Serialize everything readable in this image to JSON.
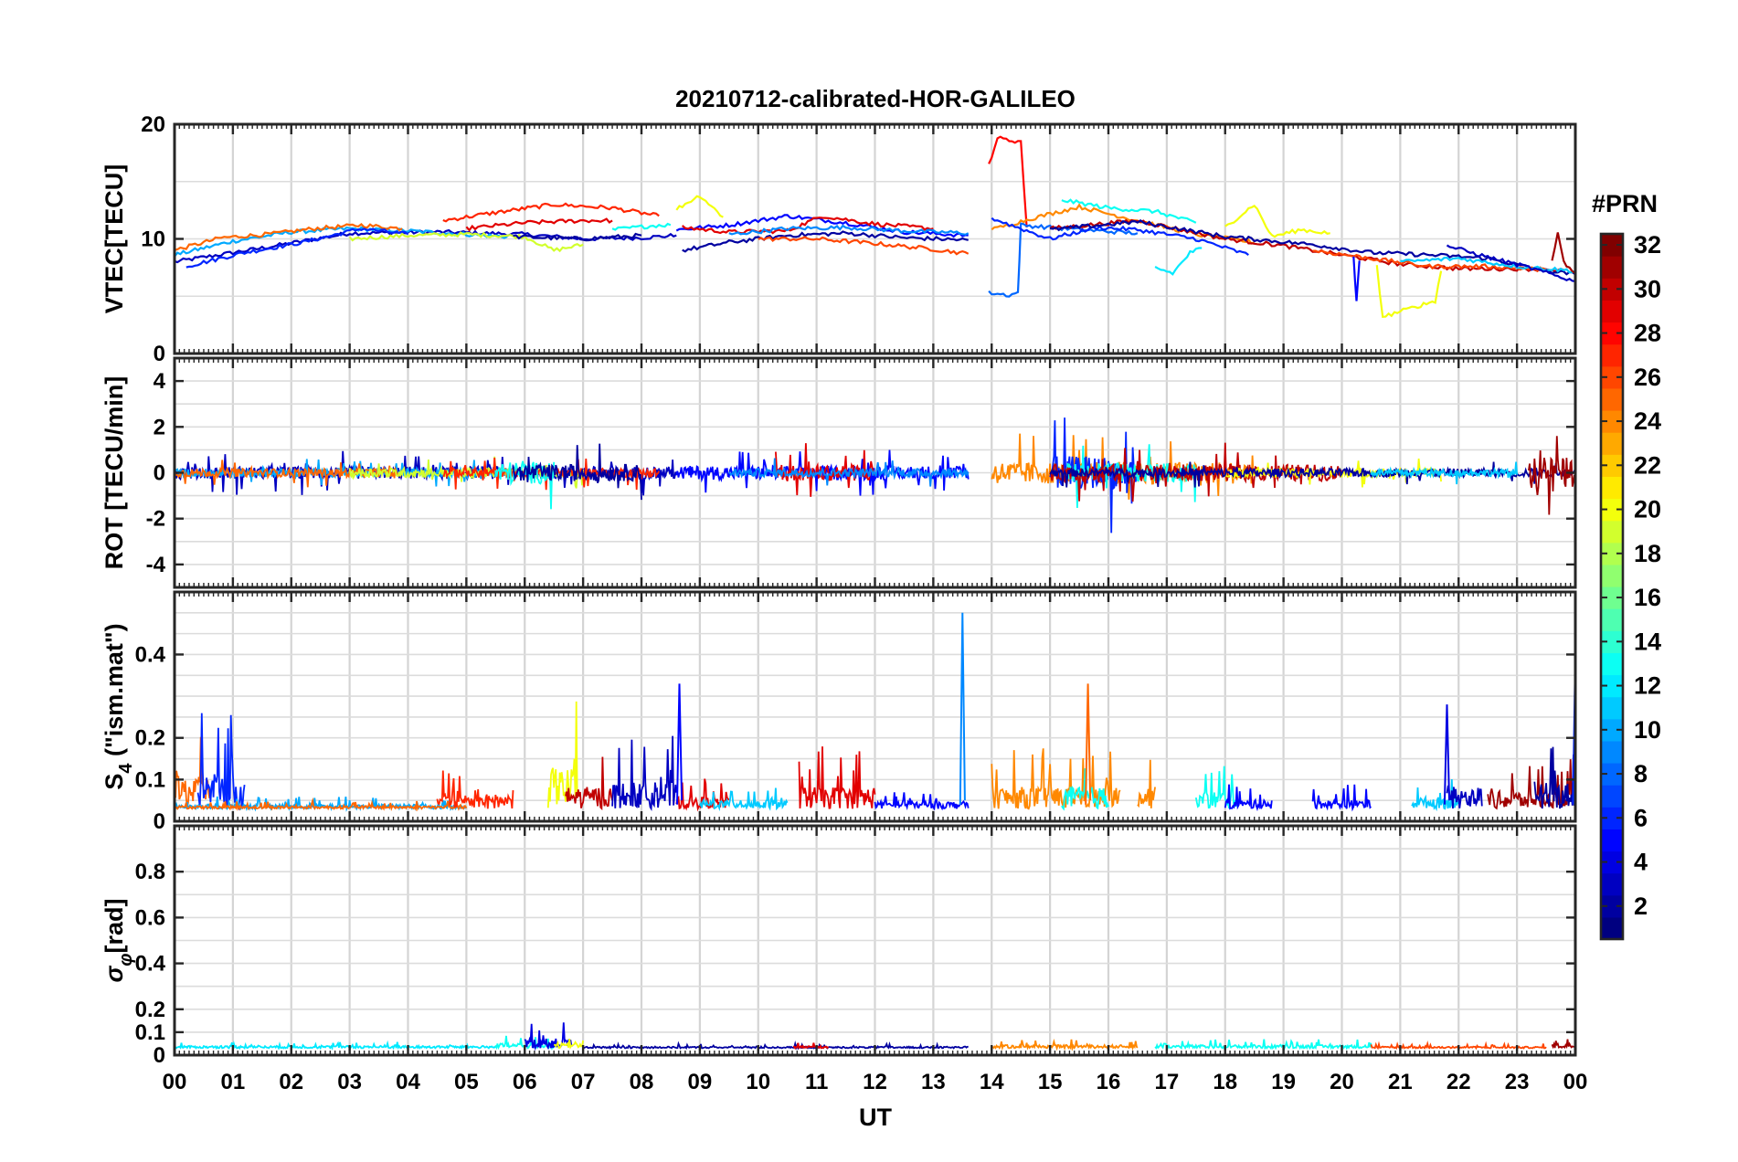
{
  "chart_data": {
    "type": "line",
    "title": "20210712-calibrated-HOR-GALILEO",
    "xlabel": "UT",
    "x_tick_labels": [
      "00",
      "01",
      "02",
      "03",
      "04",
      "05",
      "06",
      "07",
      "08",
      "09",
      "10",
      "11",
      "12",
      "13",
      "14",
      "15",
      "16",
      "17",
      "18",
      "19",
      "20",
      "21",
      "22",
      "23",
      "00"
    ],
    "xlim": [
      0,
      24
    ],
    "grid": true,
    "colormap": "jet",
    "colorbar": {
      "title": "#PRN",
      "range": [
        1,
        32
      ],
      "tick_labels": [
        "2",
        "4",
        "6",
        "8",
        "10",
        "12",
        "14",
        "16",
        "18",
        "20",
        "22",
        "24",
        "26",
        "28",
        "30",
        "32"
      ],
      "tick_values": [
        2,
        4,
        6,
        8,
        10,
        12,
        14,
        16,
        18,
        20,
        22,
        24,
        26,
        28,
        30,
        32
      ]
    },
    "panels": [
      {
        "name": "vtec",
        "ylabel": "VTEC[TECU]",
        "ylim": [
          0,
          20
        ],
        "y_ticks": [
          0,
          10,
          20
        ],
        "y_tick_labels": [
          "0",
          "10",
          "20"
        ],
        "series": [
          {
            "prn": 3,
            "x": [
              0.0,
              1.5,
              3.0,
              4.5,
              6.0,
              7.0,
              8.0,
              8.6
            ],
            "y": [
              8.0,
              9.2,
              10.5,
              10.6,
              10.4,
              10.0,
              10.1,
              10.3
            ]
          },
          {
            "prn": 10,
            "x": [
              0.0,
              1.0,
              2.0,
              3.0,
              4.0,
              5.0,
              5.7
            ],
            "y": [
              8.6,
              9.8,
              10.6,
              10.9,
              10.7,
              10.4,
              10.2
            ]
          },
          {
            "prn": 25,
            "x": [
              0.0,
              0.8,
              1.6,
              2.4,
              3.2,
              3.9
            ],
            "y": [
              9.0,
              10.1,
              10.4,
              10.9,
              11.2,
              10.9
            ]
          },
          {
            "prn": 6,
            "x": [
              0.2,
              1.2,
              2.2,
              3.2,
              4.0
            ],
            "y": [
              7.6,
              8.8,
              9.7,
              10.9,
              10.4
            ]
          },
          {
            "prn": 19,
            "x": [
              3.0,
              4.0,
              5.0,
              6.0,
              6.5,
              7.0
            ],
            "y": [
              10.0,
              10.3,
              10.4,
              10.2,
              9.0,
              9.5
            ]
          },
          {
            "prn": 27,
            "x": [
              4.6,
              5.5,
              6.5,
              7.5,
              8.3
            ],
            "y": [
              11.6,
              12.3,
              13.0,
              12.7,
              12.0
            ]
          },
          {
            "prn": 29,
            "x": [
              5.0,
              6.0,
              7.0,
              7.5
            ],
            "y": [
              10.9,
              11.4,
              11.6,
              11.6
            ]
          },
          {
            "prn": 2,
            "x": [
              5.8,
              7.0,
              8.0
            ],
            "y": [
              10.2,
              10.0,
              10.3
            ]
          },
          {
            "prn": 13,
            "x": [
              7.5,
              8.3,
              8.5
            ],
            "y": [
              10.8,
              11.2,
              11.2
            ]
          },
          {
            "prn": 20,
            "x": [
              8.6,
              9.0,
              9.4
            ],
            "y": [
              12.6,
              13.8,
              11.9
            ]
          },
          {
            "prn": 5,
            "x": [
              8.6,
              9.5,
              10.5,
              11.5,
              12.5,
              13.6
            ],
            "y": [
              10.8,
              11.2,
              12.0,
              11.4,
              10.6,
              10.3
            ]
          },
          {
            "prn": 29,
            "x": [
              8.7,
              9.5,
              10.5,
              11.1,
              12.0,
              13.0
            ],
            "y": [
              11.0,
              10.6,
              10.7,
              12.0,
              11.3,
              10.9
            ]
          },
          {
            "prn": 2,
            "x": [
              8.7,
              9.5,
              10.5,
              11.5,
              12.5,
              13.6
            ],
            "y": [
              9.0,
              9.7,
              10.3,
              10.5,
              10.1,
              9.9
            ]
          },
          {
            "prn": 9,
            "x": [
              9.5,
              10.5,
              11.5,
              12.5,
              13.6
            ],
            "y": [
              10.4,
              10.9,
              11.0,
              10.7,
              10.5
            ]
          },
          {
            "prn": 26,
            "x": [
              10.0,
              11.0,
              12.0,
              13.0,
              13.6
            ],
            "y": [
              10.0,
              10.0,
              9.6,
              9.1,
              8.7
            ]
          },
          {
            "prn": 28,
            "x": [
              13.95,
              14.1,
              14.3,
              14.5,
              14.6
            ],
            "y": [
              16.5,
              18.8,
              18.6,
              18.5,
              11.0
            ]
          },
          {
            "prn": 8,
            "x": [
              13.95,
              14.3,
              14.45,
              14.5,
              15.5,
              16.5
            ],
            "y": [
              5.3,
              5.1,
              5.3,
              11.2,
              10.8,
              10.5
            ]
          },
          {
            "prn": 24,
            "x": [
              14.0,
              14.7,
              15.5,
              16.5,
              17.5,
              18.5
            ],
            "y": [
              10.8,
              11.8,
              12.8,
              11.6,
              10.4,
              9.7
            ]
          },
          {
            "prn": 6,
            "x": [
              14.0,
              15.0,
              15.8,
              16.5,
              17.5,
              18.4
            ],
            "y": [
              11.8,
              10.0,
              11.0,
              10.8,
              10.0,
              8.6
            ]
          },
          {
            "prn": 13,
            "x": [
              15.2,
              16.0,
              16.8,
              17.5
            ],
            "y": [
              13.4,
              12.7,
              12.4,
              11.4
            ]
          },
          {
            "prn": 12,
            "x": [
              16.8,
              17.1,
              17.4,
              17.6
            ],
            "y": [
              7.5,
              7.0,
              8.8,
              9.2
            ]
          },
          {
            "prn": 20,
            "x": [
              18.0,
              18.5,
              18.8,
              19.3,
              19.8
            ],
            "y": [
              11.0,
              13.0,
              10.2,
              10.8,
              10.5
            ]
          },
          {
            "prn": 30,
            "x": [
              15.0,
              16.5,
              18.0,
              19.0,
              20.0,
              21.0,
              22.0,
              23.0,
              23.8
            ],
            "y": [
              10.9,
              11.6,
              10.0,
              9.4,
              8.6,
              7.8,
              7.4,
              7.4,
              7.3
            ]
          },
          {
            "prn": 2,
            "x": [
              15.0,
              16.5,
              18.0,
              19.5,
              20.5,
              21.5,
              22.5,
              23.4,
              24.0
            ],
            "y": [
              10.8,
              11.5,
              10.2,
              9.5,
              8.8,
              8.6,
              8.3,
              7.3,
              6.9
            ]
          },
          {
            "prn": 20,
            "x": [
              20.6,
              20.7,
              21.6,
              21.7
            ],
            "y": [
              7.6,
              3.2,
              4.6,
              7.2
            ]
          },
          {
            "prn": 26,
            "x": [
              19.5,
              20.5,
              21.5,
              22.5,
              23.5
            ],
            "y": [
              9.0,
              8.3,
              7.6,
              7.6,
              7.3
            ]
          },
          {
            "prn": 5,
            "x": [
              20.2,
              20.25,
              20.3
            ],
            "y": [
              8.3,
              4.7,
              8.1
            ]
          },
          {
            "prn": 11,
            "x": [
              21.0,
              22.0,
              23.0,
              24.0
            ],
            "y": [
              8.0,
              8.3,
              7.6,
              7.2
            ]
          },
          {
            "prn": 3,
            "x": [
              21.8,
              22.5,
              23.2,
              24.0
            ],
            "y": [
              9.4,
              8.4,
              7.5,
              6.3
            ]
          },
          {
            "prn": 31,
            "x": [
              23.6,
              23.7,
              23.8,
              24.0
            ],
            "y": [
              8.0,
              10.7,
              8.0,
              7.0
            ]
          }
        ]
      },
      {
        "name": "rot",
        "ylabel": "ROT [TECU/min]",
        "ylim": [
          -5,
          5
        ],
        "y_ticks": [
          -4,
          -2,
          0,
          2,
          4
        ],
        "y_tick_labels": [
          "-4",
          "-2",
          "0",
          "2",
          "4"
        ],
        "noise_segments": [
          {
            "prn": 3,
            "x0": 0.0,
            "x1": 8.6,
            "amp": 0.45
          },
          {
            "prn": 10,
            "x0": 0.0,
            "x1": 5.7,
            "amp": 0.3
          },
          {
            "prn": 25,
            "x0": 0.0,
            "x1": 3.9,
            "amp": 0.3
          },
          {
            "prn": 19,
            "x0": 3.0,
            "x1": 7.0,
            "amp": 0.35
          },
          {
            "prn": 27,
            "x0": 4.6,
            "x1": 8.3,
            "amp": 0.35
          },
          {
            "prn": 13,
            "x0": 5.5,
            "x1": 6.5,
            "amp": 0.8
          },
          {
            "prn": 2,
            "x0": 5.8,
            "x1": 8.0,
            "amp": 0.6
          },
          {
            "prn": 5,
            "x0": 8.6,
            "x1": 13.6,
            "amp": 0.5
          },
          {
            "prn": 29,
            "x0": 10.3,
            "x1": 12.0,
            "amp": 0.6
          },
          {
            "prn": 9,
            "x0": 9.5,
            "x1": 13.6,
            "amp": 0.3
          },
          {
            "prn": 24,
            "x0": 14.0,
            "x1": 18.5,
            "amp": 0.8
          },
          {
            "prn": 6,
            "x0": 15.0,
            "x1": 16.5,
            "amp": 1.2
          },
          {
            "prn": 13,
            "x0": 15.2,
            "x1": 17.5,
            "amp": 0.7
          },
          {
            "prn": 30,
            "x0": 15.0,
            "x1": 20.0,
            "amp": 0.6
          },
          {
            "prn": 20,
            "x0": 18.0,
            "x1": 21.7,
            "amp": 0.3
          },
          {
            "prn": 2,
            "x0": 15.0,
            "x1": 24.0,
            "amp": 0.3
          },
          {
            "prn": 11,
            "x0": 20.5,
            "x1": 23.0,
            "amp": 0.25
          },
          {
            "prn": 31,
            "x0": 23.2,
            "x1": 24.0,
            "amp": 1.1
          }
        ]
      },
      {
        "name": "s4",
        "ylabel": "S",
        "ylabel_sub": "4",
        "ylabel_suffix": " (\"ism.mat\")",
        "ylim": [
          0,
          0.55
        ],
        "y_ticks": [
          0,
          0.1,
          0.2,
          0.4
        ],
        "y_tick_labels": [
          "0",
          "0.1",
          "0.2",
          "0.4"
        ],
        "noise_segments": [
          {
            "prn": 25,
            "x0": 0.0,
            "x1": 0.6,
            "amp": 0.22
          },
          {
            "prn": 6,
            "x0": 0.4,
            "x1": 1.2,
            "amp": 0.25
          },
          {
            "prn": 10,
            "x0": 0.0,
            "x1": 5.0,
            "amp": 0.03
          },
          {
            "prn": 25,
            "x0": 0.0,
            "x1": 5.0,
            "amp": 0.02
          },
          {
            "prn": 27,
            "x0": 4.5,
            "x1": 5.8,
            "amp": 0.1
          },
          {
            "prn": 20,
            "x0": 6.4,
            "x1": 6.9,
            "amp": 0.28
          },
          {
            "prn": 30,
            "x0": 6.7,
            "x1": 7.5,
            "amp": 0.15
          },
          {
            "prn": 3,
            "x0": 7.5,
            "x1": 8.6,
            "amp": 0.18
          },
          {
            "prn": 29,
            "x0": 8.6,
            "x1": 9.5,
            "amp": 0.08
          },
          {
            "prn": 11,
            "x0": 9.0,
            "x1": 10.5,
            "amp": 0.06
          },
          {
            "prn": 29,
            "x0": 10.7,
            "x1": 12.0,
            "amp": 0.15
          },
          {
            "prn": 5,
            "x0": 12.0,
            "x1": 13.6,
            "amp": 0.05
          },
          {
            "prn": 24,
            "x0": 14.0,
            "x1": 16.2,
            "amp": 0.15
          },
          {
            "prn": 13,
            "x0": 15.2,
            "x1": 16.0,
            "amp": 0.15
          },
          {
            "prn": 24,
            "x0": 16.5,
            "x1": 16.8,
            "amp": 0.15
          },
          {
            "prn": 13,
            "x0": 17.5,
            "x1": 18.2,
            "amp": 0.12
          },
          {
            "prn": 5,
            "x0": 18.0,
            "x1": 18.8,
            "amp": 0.06
          },
          {
            "prn": 5,
            "x0": 19.5,
            "x1": 20.5,
            "amp": 0.06
          },
          {
            "prn": 11,
            "x0": 21.2,
            "x1": 22.0,
            "amp": 0.08
          },
          {
            "prn": 3,
            "x0": 21.8,
            "x1": 22.4,
            "amp": 0.15
          },
          {
            "prn": 31,
            "x0": 22.5,
            "x1": 24.0,
            "amp": 0.12
          },
          {
            "prn": 2,
            "x0": 23.3,
            "x1": 24.0,
            "amp": 0.18
          }
        ],
        "spikes": [
          {
            "prn": 9,
            "x": 13.5,
            "y": 0.5
          },
          {
            "prn": 6,
            "x": 24.0,
            "y": 0.4
          },
          {
            "prn": 5,
            "x": 8.65,
            "y": 0.33
          },
          {
            "prn": 25,
            "x": 15.65,
            "y": 0.33
          },
          {
            "prn": 4,
            "x": 21.8,
            "y": 0.28
          }
        ]
      },
      {
        "name": "sigma",
        "ylabel": "σ",
        "ylabel_sub": "φ",
        "ylabel_suffix": "[rad]",
        "ylim": [
          0,
          1
        ],
        "y_ticks": [
          0,
          0.1,
          0.2,
          0.4,
          0.6,
          0.8
        ],
        "y_tick_labels": [
          "0",
          "0.1",
          "0.2",
          "0.4",
          "0.6",
          "0.8"
        ],
        "noise_segments": [
          {
            "prn": 12,
            "x0": 0.0,
            "x1": 5.5,
            "amp": 0.03
          },
          {
            "prn": 13,
            "x0": 5.5,
            "x1": 6.5,
            "amp": 0.06
          },
          {
            "prn": 4,
            "x0": 6.0,
            "x1": 6.8,
            "amp": 0.12
          },
          {
            "prn": 20,
            "x0": 6.5,
            "x1": 7.0,
            "amp": 0.06
          },
          {
            "prn": 2,
            "x0": 7.0,
            "x1": 13.6,
            "amp": 0.02
          },
          {
            "prn": 29,
            "x0": 10.6,
            "x1": 11.2,
            "amp": 0.03
          },
          {
            "prn": 24,
            "x0": 14.0,
            "x1": 16.5,
            "amp": 0.04
          },
          {
            "prn": 13,
            "x0": 16.8,
            "x1": 20.5,
            "amp": 0.04
          },
          {
            "prn": 26,
            "x0": 20.5,
            "x1": 23.5,
            "amp": 0.02
          },
          {
            "prn": 31,
            "x0": 23.6,
            "x1": 24.0,
            "amp": 0.06
          }
        ]
      }
    ]
  }
}
